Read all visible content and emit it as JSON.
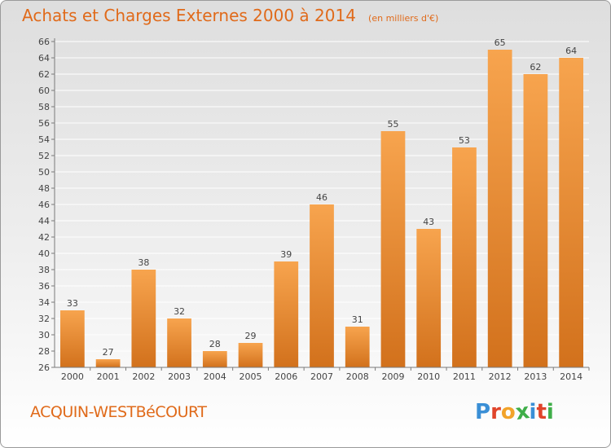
{
  "header": {
    "title": "Achats et Charges Externes 2000 à 2014",
    "subtitle": "(en milliers d'€)"
  },
  "footer": {
    "commune": "ACQUIN-WESTBéCOURT",
    "logo_text": "Proxiti",
    "logo_colors": [
      "#3a8fd6",
      "#e0442a",
      "#f2a32a",
      "#3fae49",
      "#3a8fd6",
      "#e0442a",
      "#3fae49"
    ]
  },
  "colors": {
    "bar_light": "#f7a44e",
    "bar_dark": "#d2711c",
    "title": "#e06a1a",
    "axis": "#7a7a7a",
    "grid": "#ffffff"
  },
  "chart_data": {
    "type": "bar",
    "categories": [
      "2000",
      "2001",
      "2002",
      "2003",
      "2004",
      "2005",
      "2006",
      "2007",
      "2008",
      "2009",
      "2010",
      "2011",
      "2012",
      "2013",
      "2014"
    ],
    "values": [
      33,
      27,
      38,
      32,
      28,
      29,
      39,
      46,
      31,
      55,
      43,
      53,
      65,
      62,
      64
    ],
    "title": "Achats et Charges Externes 2000 à 2014",
    "subtitle": "(en milliers d'€)",
    "ylim": [
      26,
      66
    ],
    "yticks": [
      26,
      28,
      30,
      32,
      34,
      36,
      38,
      40,
      42,
      44,
      46,
      48,
      50,
      52,
      54,
      56,
      58,
      60,
      62,
      64,
      66
    ],
    "grid": true,
    "legend": "none"
  }
}
